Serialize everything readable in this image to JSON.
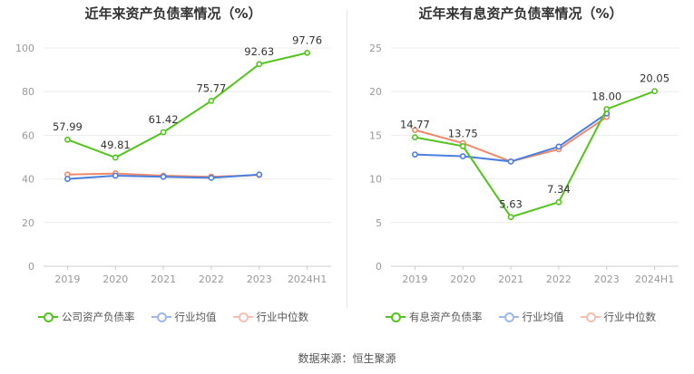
{
  "source_label": "数据来源：恒生聚源",
  "colors": {
    "company": "#52c41a",
    "industry_avg": "#4a7fe0",
    "industry_median": "#f0896a",
    "axis": "#999999",
    "grid": "#ececec",
    "label": "#333333"
  },
  "chart_data": [
    {
      "type": "line",
      "title": "近年来资产负债率情况（%）",
      "x": [
        "2019",
        "2020",
        "2021",
        "2022",
        "2023",
        "2024H1"
      ],
      "ylim": [
        0,
        100
      ],
      "yticks": [
        0,
        20,
        40,
        60,
        80,
        100
      ],
      "grid": true,
      "legend_position": "bottom",
      "series": [
        {
          "name": "公司资产负债率",
          "color_key": "company",
          "values": [
            57.99,
            49.81,
            61.42,
            75.77,
            92.63,
            97.76
          ],
          "labels": true
        },
        {
          "name": "行业均值",
          "color_key": "industry_avg",
          "values": [
            40.0,
            41.5,
            41.0,
            40.5,
            42.0,
            null
          ],
          "labels": false
        },
        {
          "name": "行业中位数",
          "color_key": "industry_median",
          "values": [
            42.0,
            42.5,
            41.5,
            41.0,
            41.8,
            null
          ],
          "labels": false
        }
      ]
    },
    {
      "type": "line",
      "title": "近年来有息资产负债率情况（%）",
      "x": [
        "2019",
        "2020",
        "2021",
        "2022",
        "2023",
        "2024H1"
      ],
      "ylim": [
        0,
        25
      ],
      "yticks": [
        0,
        5,
        10,
        15,
        20,
        25
      ],
      "grid": true,
      "legend_position": "bottom",
      "series": [
        {
          "name": "有息资产负债率",
          "color_key": "company",
          "values": [
            14.77,
            13.75,
            5.63,
            7.34,
            18.0,
            20.05
          ],
          "labels": true
        },
        {
          "name": "行业均值",
          "color_key": "industry_avg",
          "values": [
            12.8,
            12.6,
            12.0,
            13.7,
            17.5,
            null
          ],
          "labels": false
        },
        {
          "name": "行业中位数",
          "color_key": "industry_median",
          "values": [
            15.6,
            14.1,
            12.0,
            13.4,
            17.1,
            null
          ],
          "labels": false
        }
      ]
    }
  ]
}
